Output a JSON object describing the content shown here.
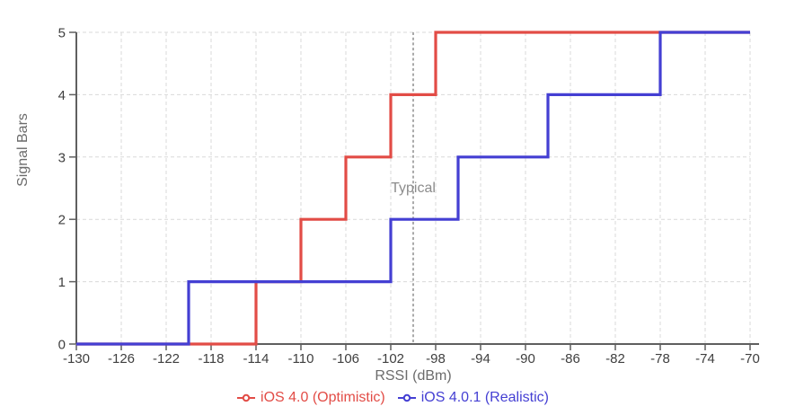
{
  "chart_data": {
    "type": "step-line",
    "title": "",
    "xlabel": "RSSI (dBm)",
    "ylabel": "Signal Bars",
    "xlim": [
      -130,
      -70
    ],
    "ylim": [
      0,
      5
    ],
    "x_ticks": [
      -130,
      -126,
      -122,
      -118,
      -114,
      -110,
      -106,
      -102,
      -98,
      -94,
      -90,
      -86,
      -82,
      -78,
      -74,
      -70
    ],
    "y_ticks": [
      0,
      1,
      2,
      3,
      4,
      5
    ],
    "grid": true,
    "legend_position": "bottom",
    "annotation": {
      "label": "Typical",
      "x": -100
    },
    "series": [
      {
        "name": "iOS 4.0 (Optimistic)",
        "color": "#e24c46",
        "points": [
          [
            -130,
            0
          ],
          [
            -114,
            0
          ],
          [
            -114,
            1
          ],
          [
            -110,
            1
          ],
          [
            -110,
            2
          ],
          [
            -106,
            2
          ],
          [
            -106,
            3
          ],
          [
            -102,
            3
          ],
          [
            -102,
            4
          ],
          [
            -98,
            4
          ],
          [
            -98,
            5
          ],
          [
            -70,
            5
          ]
        ]
      },
      {
        "name": "iOS 4.0.1 (Realistic)",
        "color": "#443fd3",
        "points": [
          [
            -130,
            0
          ],
          [
            -120,
            0
          ],
          [
            -120,
            1
          ],
          [
            -102,
            1
          ],
          [
            -102,
            2
          ],
          [
            -96,
            2
          ],
          [
            -96,
            3
          ],
          [
            -88,
            3
          ],
          [
            -88,
            4
          ],
          [
            -78,
            4
          ],
          [
            -78,
            5
          ],
          [
            -70,
            5
          ]
        ]
      }
    ],
    "colors": {
      "grid": "#d9d9d9",
      "axis": "#5f5f5f",
      "tick_label": "#3f3f3f",
      "axis_title": "#6b6b6b",
      "annotation_line": "#7c7c7c",
      "annotation_text": "#8c8c8c",
      "background": "#ffffff"
    }
  }
}
